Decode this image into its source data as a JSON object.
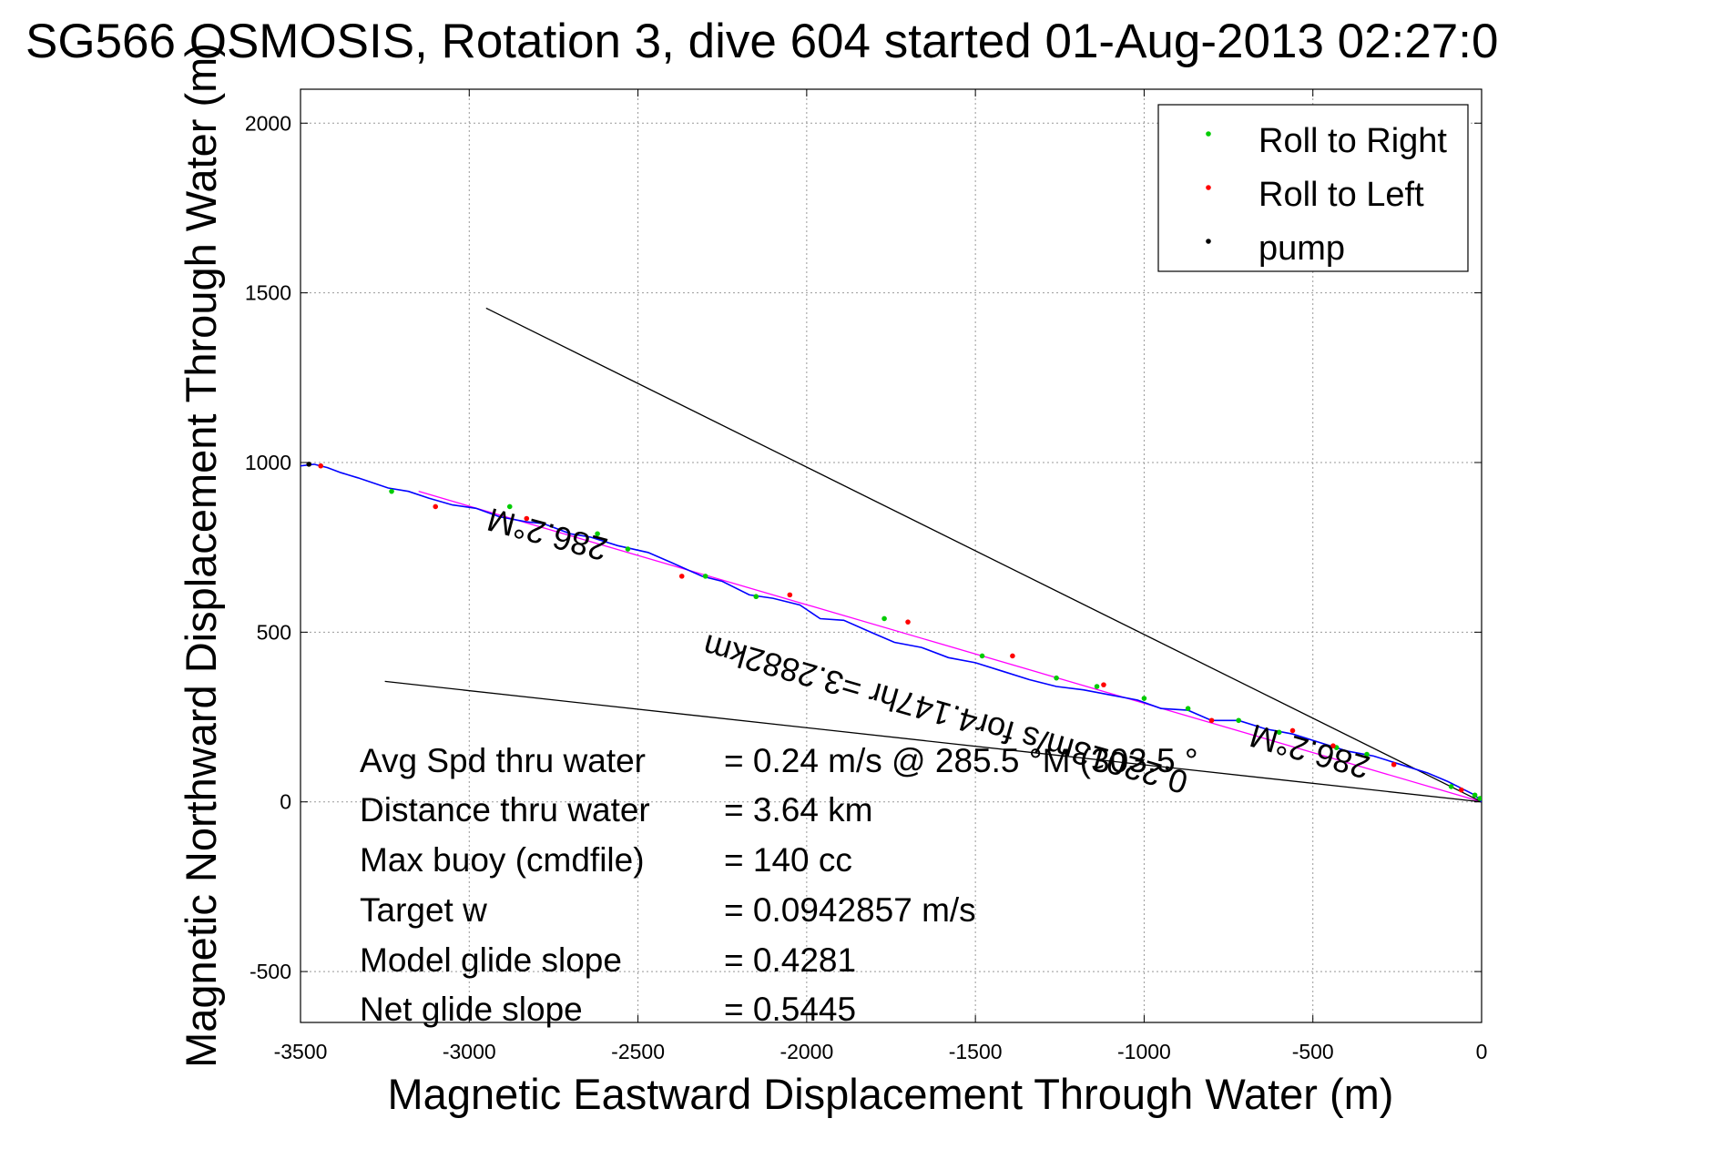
{
  "chart_data": {
    "type": "scatter",
    "title": "SG566 OSMOSIS, Rotation 3, dive 604 started 01-Aug-2013 02:27:0",
    "xlabel": "Magnetic Eastward Displacement Through Water (m)",
    "ylabel": "Magnetic Northward Displacement Through Water (m)",
    "xlim": [
      -3500,
      0
    ],
    "ylim": [
      -650,
      2100
    ],
    "grid": true,
    "legend_position": "top-right",
    "x_ticks": [
      -3500,
      -3000,
      -2500,
      -2000,
      -1500,
      -1000,
      -500,
      0
    ],
    "x_tick_labels": [
      "-3500",
      "-3000",
      "-2500",
      "-2000",
      "-1500",
      "-1000",
      "-500",
      "0"
    ],
    "y_ticks": [
      -500,
      0,
      500,
      1000,
      1500,
      2000
    ],
    "y_tick_labels": [
      "-500",
      "0",
      "500",
      "1000",
      "1500",
      "2000"
    ],
    "series": [
      {
        "name": "Roll to Right",
        "color": "#00cc00",
        "x": [
          -3230,
          -2880,
          -2620,
          -2530,
          -2300,
          -2150,
          -1770,
          -1480,
          -1260,
          -1140,
          -1000,
          -870,
          -720,
          -600,
          -430,
          -340,
          -90,
          -20,
          -5
        ],
        "y": [
          915,
          870,
          790,
          745,
          665,
          605,
          540,
          430,
          365,
          340,
          305,
          275,
          240,
          205,
          160,
          140,
          45,
          20,
          10
        ]
      },
      {
        "name": "Roll to Left",
        "color": "#ff0000",
        "x": [
          -3440,
          -3100,
          -2830,
          -2370,
          -2050,
          -1700,
          -1390,
          -1120,
          -800,
          -560,
          -440,
          -260,
          -60
        ],
        "y": [
          990,
          870,
          835,
          665,
          610,
          530,
          430,
          345,
          240,
          210,
          165,
          110,
          35
        ]
      },
      {
        "name": "pump",
        "color": "#000000",
        "x": [
          -3475
        ],
        "y": [
          995
        ]
      }
    ],
    "track": {
      "name": "track",
      "color": "#0000ff",
      "x": [
        -3500,
        -3460,
        -3420,
        -3380,
        -3330,
        -3240,
        -3180,
        -3120,
        -3050,
        -2980,
        -2910,
        -2830,
        -2780,
        -2700,
        -2640,
        -2560,
        -2470,
        -2400,
        -2310,
        -2250,
        -2170,
        -2100,
        -2020,
        -1960,
        -1890,
        -1810,
        -1740,
        -1660,
        -1580,
        -1500,
        -1420,
        -1340,
        -1260,
        -1180,
        -1100,
        -1020,
        -950,
        -870,
        -800,
        -720,
        -640,
        -560,
        -480,
        -400,
        -320,
        -240,
        -160,
        -100,
        -60,
        -20,
        0
      ],
      "y": [
        990,
        995,
        985,
        970,
        955,
        925,
        915,
        895,
        875,
        865,
        840,
        825,
        820,
        790,
        780,
        755,
        735,
        705,
        665,
        650,
        610,
        600,
        580,
        540,
        535,
        500,
        470,
        455,
        425,
        410,
        385,
        360,
        340,
        330,
        315,
        300,
        275,
        270,
        240,
        240,
        215,
        200,
        175,
        150,
        135,
        110,
        85,
        60,
        40,
        20,
        0
      ]
    },
    "ref_lines": [
      {
        "name": "heading-line",
        "color": "#ff00ff",
        "x": [
          -3150,
          0
        ],
        "y": [
          915,
          0
        ]
      },
      {
        "name": "envelope-upper",
        "color": "#000000",
        "x": [
          -2950,
          0
        ],
        "y": [
          1455,
          0
        ]
      },
      {
        "name": "envelope-lower",
        "color": "#000000",
        "x": [
          -3250,
          0
        ],
        "y": [
          355,
          0
        ]
      }
    ],
    "annotations": [
      {
        "text": "286.2°M",
        "x": -2760,
        "y": 820,
        "angle": 195
      },
      {
        "text": "0.22013m/s for4.147hr =3.2882km",
        "x": -1580,
        "y": 290,
        "angle": 196
      },
      {
        "text": "286.2°M",
        "x": -500,
        "y": 180,
        "angle": 196
      }
    ],
    "stats": [
      {
        "label": "Avg Spd thru water",
        "value": "=  0.24 m/s @ 285.5 °M (303.5 °"
      },
      {
        "label": "Distance thru water",
        "value": "=  3.64 km"
      },
      {
        "label": "Max buoy (cmdfile)",
        "value": "= 140 cc"
      },
      {
        "label": "Target w",
        "value": "= 0.0942857 m/s"
      },
      {
        "label": "Model glide slope",
        "value": "= 0.4281"
      },
      {
        "label": "Net glide slope",
        "value": "= 0.5445"
      }
    ]
  }
}
